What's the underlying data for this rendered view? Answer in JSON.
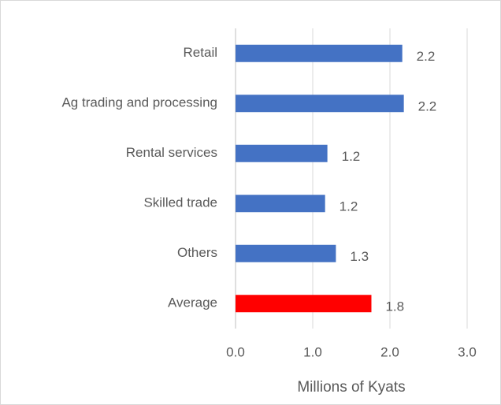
{
  "chart_data": {
    "type": "barh",
    "xlabel": "Millions of Kyats",
    "categories": [
      "Retail",
      "Ag trading and processing",
      "Rental services",
      "Skilled trade",
      "Others",
      "Average"
    ],
    "values": [
      2.16,
      2.18,
      1.19,
      1.16,
      1.3,
      1.76
    ],
    "value_labels": [
      "2.2",
      "2.2",
      "1.2",
      "1.2",
      "1.3",
      "1.8"
    ],
    "colors": [
      "#4472c4",
      "#4472c4",
      "#4472c4",
      "#4472c4",
      "#4472c4",
      "#ff0000"
    ],
    "xlim": [
      0,
      3
    ],
    "xticks": [
      {
        "value": 0,
        "label": "0.0"
      },
      {
        "value": 1,
        "label": "1.0"
      },
      {
        "value": 2,
        "label": "2.0"
      },
      {
        "value": 3,
        "label": "3.0"
      }
    ],
    "grid": true
  }
}
